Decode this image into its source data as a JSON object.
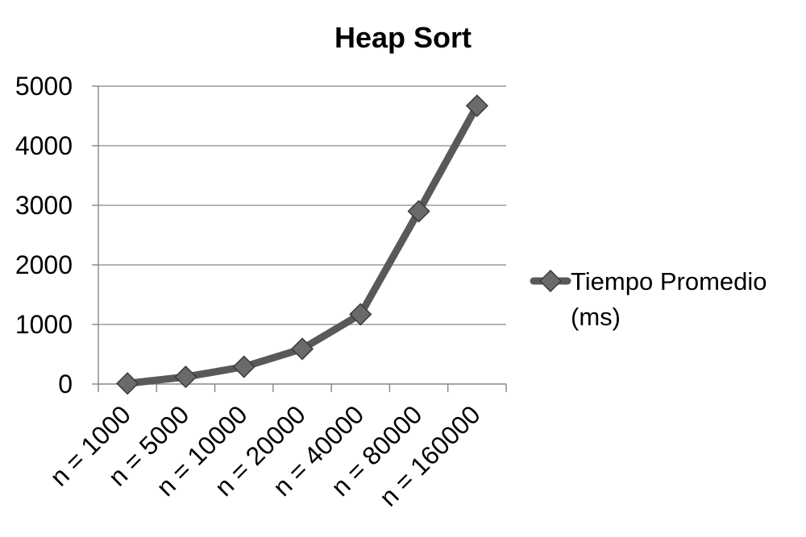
{
  "chart_data": {
    "type": "line",
    "title": "Heap Sort",
    "xlabel": "",
    "ylabel": "",
    "categories": [
      "n = 1000",
      "n = 5000",
      "n = 10000",
      "n = 20000",
      "n = 40000",
      "n = 80000",
      "n = 160000"
    ],
    "series": [
      {
        "name": "Tiempo Promedio (ms)",
        "name_lines": [
          "Tiempo Promedio",
          "(ms)"
        ],
        "values": [
          10,
          120,
          290,
          590,
          1170,
          2900,
          4670
        ],
        "color": "#595959",
        "marker": "diamond"
      }
    ],
    "ylim": [
      0,
      5000
    ],
    "yticks": [
      0,
      1000,
      2000,
      3000,
      4000,
      5000
    ],
    "grid": "horizontal",
    "legend_position": "right"
  }
}
